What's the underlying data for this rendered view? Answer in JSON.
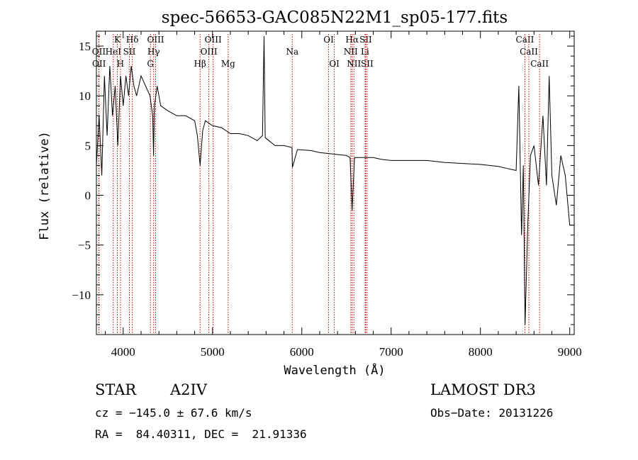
{
  "chart_data": {
    "type": "line",
    "title": "spec-56653-GAC085N22M1_sp05-177.fits",
    "xlabel": "Wavelength (Å)",
    "ylabel": "Flux (relative)",
    "xlim": [
      3700,
      9050
    ],
    "ylim": [
      -14,
      16.5
    ],
    "xticks": [
      4000,
      5000,
      6000,
      7000,
      8000,
      9000
    ],
    "yticks": [
      -10,
      -5,
      0,
      5,
      10,
      15
    ],
    "xtick_labels": [
      "4000",
      "5000",
      "6000",
      "7000",
      "8000",
      "9000"
    ],
    "ytick_labels": [
      "−10",
      "−5",
      "0",
      "5",
      "10",
      "15"
    ],
    "series": [
      {
        "name": "flux",
        "x": [
          3700,
          3730,
          3760,
          3790,
          3820,
          3850,
          3880,
          3910,
          3940,
          3970,
          4000,
          4030,
          4060,
          4090,
          4120,
          4150,
          4200,
          4250,
          4300,
          4330,
          4340,
          4350,
          4380,
          4420,
          4500,
          4600,
          4700,
          4800,
          4830,
          4861,
          4890,
          4920,
          5000,
          5100,
          5200,
          5300,
          5400,
          5500,
          5560,
          5577,
          5590,
          5700,
          5800,
          5890,
          5895,
          5950,
          6100,
          6200,
          6300,
          6400,
          6500,
          6540,
          6563,
          6590,
          6700,
          6800,
          6900,
          7000,
          7200,
          7400,
          7600,
          7800,
          8000,
          8200,
          8300,
          8350,
          8400,
          8430,
          8460,
          8480,
          8500,
          8530,
          8560,
          8600,
          8650,
          8700,
          8740,
          8770,
          8800,
          8850,
          8900,
          8950,
          9000,
          9050
        ],
        "y": [
          3,
          8,
          2,
          12,
          6,
          13,
          8,
          11,
          5,
          12,
          9,
          12,
          10,
          13,
          11,
          10,
          12,
          11,
          10,
          8,
          4,
          9,
          11,
          9,
          8.5,
          8,
          8,
          7.5,
          6,
          3,
          6.5,
          7.5,
          7,
          6.8,
          6.2,
          6.2,
          6,
          5.5,
          6,
          16,
          5.8,
          5,
          5,
          4.8,
          2.8,
          4.6,
          4.5,
          4.3,
          4.2,
          4.1,
          4,
          3.8,
          -1.5,
          3.8,
          3.8,
          3.8,
          3.6,
          3.5,
          3.5,
          3.5,
          3.3,
          3.2,
          3.1,
          2.9,
          2.7,
          2.6,
          2.5,
          11,
          -4,
          3,
          -13,
          -3,
          4,
          5,
          1,
          8,
          1,
          12,
          2,
          -1,
          4,
          2,
          -3,
          -3
        ]
      }
    ],
    "line_markers": [
      {
        "label": "Hβ",
        "wave": 4861,
        "row": 3
      },
      {
        "label": "Hδ",
        "wave": 4102,
        "row": 1
      },
      {
        "label": "Hγ",
        "wave": 4341,
        "row": 2
      },
      {
        "label": "Hα",
        "wave": 6563,
        "row": 1
      },
      {
        "label": "HeI",
        "wave": 3889,
        "row": 2
      },
      {
        "label": "K",
        "wave": 3934,
        "row": 1
      },
      {
        "label": "H",
        "wave": 3969,
        "row": 3
      },
      {
        "label": "G",
        "wave": 4305,
        "row": 3
      },
      {
        "label": "Mg",
        "wave": 5175,
        "row": 3
      },
      {
        "label": "Na",
        "wave": 5893,
        "row": 2
      },
      {
        "label": "OII",
        "wave": 3727,
        "row": 2
      },
      {
        "label": "OII",
        "wave": 3729,
        "row": 3
      },
      {
        "label": "SII",
        "wave": 4069,
        "row": 2
      },
      {
        "label": "OIII",
        "wave": 4363,
        "row": 1
      },
      {
        "label": "OIII",
        "wave": 4959,
        "row": 2
      },
      {
        "label": "OIII",
        "wave": 5007,
        "row": 1
      },
      {
        "label": "OI",
        "wave": 6300,
        "row": 1
      },
      {
        "label": "OI",
        "wave": 6364,
        "row": 3
      },
      {
        "label": "NII",
        "wave": 6548,
        "row": 2
      },
      {
        "label": "NII",
        "wave": 6583,
        "row": 3
      },
      {
        "label": "SII",
        "wave": 6716,
        "row": 1
      },
      {
        "label": "SII",
        "wave": 6731,
        "row": 3
      },
      {
        "label": "Li",
        "wave": 6708,
        "row": 2
      },
      {
        "label": "CaII",
        "wave": 8498,
        "row": 1
      },
      {
        "label": "CaII",
        "wave": 8542,
        "row": 2
      },
      {
        "label": "CaII",
        "wave": 8662,
        "row": 3
      }
    ]
  },
  "info": {
    "object_class": "STAR",
    "subclass": "A2IV",
    "survey": "LAMOST DR3",
    "cz": "cz = −145.0 ± 67.6 km/s",
    "obs_date": "Obs−Date: 20131226",
    "coords": "RA =  84.40311, DEC =  21.91336"
  },
  "colors": {
    "line": "#000000",
    "marker": "#c00000"
  }
}
